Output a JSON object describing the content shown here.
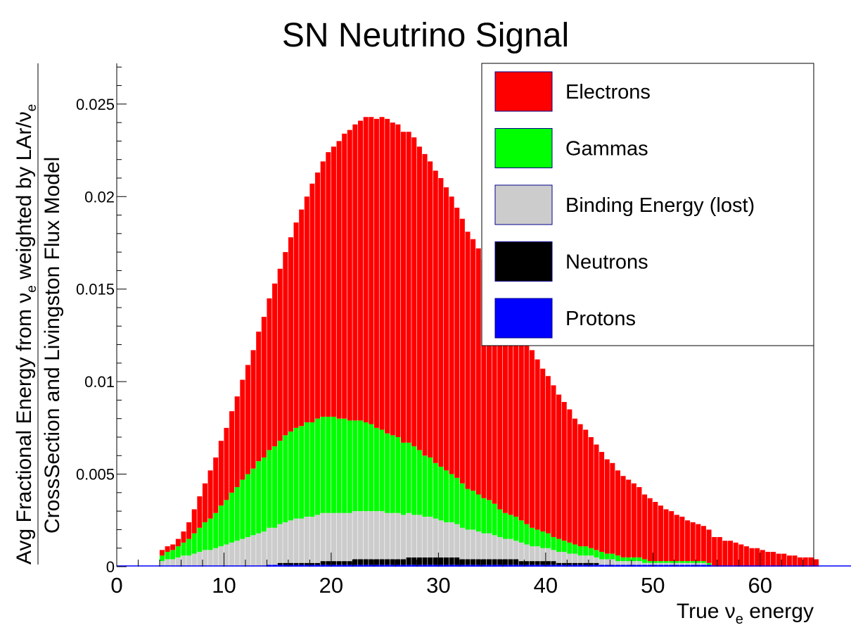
{
  "chart_data": {
    "type": "bar",
    "stacked": true,
    "title": "SN Neutrino Signal",
    "xlabel": "True ν_e energy",
    "xlabel_parts": {
      "pre": "True ν",
      "sub": "e",
      "post": " energy"
    },
    "ylabel_line1_parts": {
      "pre": "Avg Fractional Energy from ν",
      "sub1": "e",
      "mid": " weighted by LAr/ν",
      "sub2": "e"
    },
    "ylabel_line2": "CrossSection and Livingston Flux Model",
    "xlim": [
      0,
      65
    ],
    "ylim": [
      0,
      0.0272
    ],
    "x_ticks": [
      0,
      10,
      20,
      30,
      40,
      50,
      60
    ],
    "x_tick_labels": [
      "0",
      "10",
      "20",
      "30",
      "40",
      "50",
      "60"
    ],
    "y_ticks": [
      0,
      0.005,
      0.01,
      0.015,
      0.02,
      0.025
    ],
    "y_tick_labels": [
      "0",
      "0.005",
      "0.01",
      "0.015",
      "0.02",
      "0.025"
    ],
    "legend_position": "top-right",
    "bin_width": 0.5,
    "x_start": 4,
    "series": [
      {
        "name": "Electrons",
        "color": "#ff0000",
        "values": [
          0.0003,
          0.0003,
          0.0003,
          0.0004,
          0.0006,
          0.0009,
          0.0013,
          0.0017,
          0.0021,
          0.0026,
          0.003,
          0.0035,
          0.0039,
          0.0044,
          0.0049,
          0.0054,
          0.0059,
          0.0064,
          0.007,
          0.0076,
          0.0082,
          0.0088,
          0.0093,
          0.0099,
          0.0105,
          0.0111,
          0.0117,
          0.0122,
          0.0129,
          0.0133,
          0.0138,
          0.0143,
          0.0146,
          0.015,
          0.0154,
          0.0157,
          0.016,
          0.0162,
          0.0165,
          0.0166,
          0.0167,
          0.0169,
          0.017,
          0.0169,
          0.0169,
          0.0168,
          0.0168,
          0.0167,
          0.0164,
          0.0163,
          0.016,
          0.0158,
          0.0156,
          0.0153,
          0.015,
          0.0146,
          0.0143,
          0.0139,
          0.0136,
          0.0133,
          0.0129,
          0.0126,
          0.0122,
          0.0118,
          0.0114,
          0.0111,
          0.0107,
          0.0103,
          0.0099,
          0.0096,
          0.0092,
          0.0088,
          0.0085,
          0.0082,
          0.0078,
          0.0075,
          0.0072,
          0.0068,
          0.0066,
          0.0063,
          0.006,
          0.0057,
          0.0054,
          0.0051,
          0.0049,
          0.0046,
          0.0044,
          0.0042,
          0.004,
          0.0038,
          0.0035,
          0.0034,
          0.0032,
          0.003,
          0.0028,
          0.0027,
          0.0025,
          0.0024,
          0.0022,
          0.0021,
          0.002,
          0.0019,
          0.0018,
          0.0016,
          0.0016,
          0.0014,
          0.0014,
          0.0013,
          0.0012,
          0.0011,
          0.001,
          0.001,
          0.0009,
          0.0008,
          0.0008,
          0.0007,
          0.0007,
          0.0006,
          0.0006,
          0.0005,
          0.0005,
          0.0005,
          0.0004
        ]
      },
      {
        "name": "Gammas",
        "color": "#00ff00",
        "values": [
          0.0003,
          0.0004,
          0.0005,
          0.0006,
          0.0007,
          0.0009,
          0.0011,
          0.0013,
          0.0015,
          0.0017,
          0.0019,
          0.0022,
          0.0024,
          0.0027,
          0.0029,
          0.0032,
          0.0034,
          0.0036,
          0.0039,
          0.004,
          0.0042,
          0.0044,
          0.0045,
          0.0047,
          0.0048,
          0.0049,
          0.005,
          0.0051,
          0.0051,
          0.0052,
          0.0052,
          0.0052,
          0.0052,
          0.0051,
          0.0051,
          0.005,
          0.0049,
          0.0049,
          0.0048,
          0.0047,
          0.0045,
          0.0044,
          0.0043,
          0.0042,
          0.0041,
          0.0039,
          0.0038,
          0.0037,
          0.0035,
          0.0033,
          0.0032,
          0.003,
          0.0029,
          0.0028,
          0.0026,
          0.0025,
          0.0024,
          0.0022,
          0.0021,
          0.002,
          0.0019,
          0.0018,
          0.0017,
          0.0015,
          0.0014,
          0.0013,
          0.0013,
          0.0012,
          0.0011,
          0.001,
          0.0009,
          0.0009,
          0.0008,
          0.0007,
          0.0007,
          0.0006,
          0.0006,
          0.0005,
          0.0005,
          0.0005,
          0.0004,
          0.0004,
          0.0004,
          0.0003,
          0.0003,
          0.0003,
          0.0002,
          0.0002,
          0.0002,
          0.0002,
          0.0002,
          0.0001,
          0.0001,
          0.0001,
          0.0001,
          0.0001,
          0.0001,
          0.0001,
          0.0001,
          0.0001,
          0.0001,
          0.0001,
          0.0001,
          0.0,
          0.0,
          0.0,
          0.0,
          0.0,
          0.0,
          0.0,
          0.0,
          0.0,
          0.0,
          0.0,
          0.0,
          0.0,
          0.0,
          0.0,
          0.0,
          0.0,
          0.0,
          0.0,
          0.0
        ]
      },
      {
        "name": "Binding Energy (lost)",
        "color": "#cccccc",
        "values": [
          0.0003,
          0.0004,
          0.0004,
          0.0005,
          0.0006,
          0.0006,
          0.0007,
          0.0008,
          0.0009,
          0.0009,
          0.001,
          0.0011,
          0.0012,
          0.0013,
          0.0014,
          0.0015,
          0.0016,
          0.0017,
          0.0018,
          0.0019,
          0.002,
          0.002,
          0.0021,
          0.0022,
          0.0023,
          0.0024,
          0.0024,
          0.0025,
          0.0025,
          0.0026,
          0.0026,
          0.0026,
          0.0026,
          0.0026,
          0.0026,
          0.0026,
          0.0026,
          0.0026,
          0.0026,
          0.0026,
          0.0026,
          0.0026,
          0.0025,
          0.0025,
          0.0025,
          0.0024,
          0.0024,
          0.0023,
          0.0023,
          0.0022,
          0.0022,
          0.0021,
          0.002,
          0.0019,
          0.0019,
          0.0018,
          0.0017,
          0.0016,
          0.0016,
          0.0015,
          0.0014,
          0.0014,
          0.0013,
          0.0012,
          0.0011,
          0.0011,
          0.001,
          0.001,
          0.0009,
          0.0008,
          0.0008,
          0.0007,
          0.0007,
          0.0006,
          0.0006,
          0.0006,
          0.0005,
          0.0005,
          0.0004,
          0.0004,
          0.0004,
          0.0003,
          0.0003,
          0.0003,
          0.0003,
          0.0002,
          0.0002,
          0.0002,
          0.0002,
          0.0002,
          0.0001,
          0.0001,
          0.0001,
          0.0001,
          0.0001,
          0.0001,
          0.0001,
          0.0001,
          0.0001,
          0.0001,
          0.0001,
          0.0001,
          0.0,
          0.0,
          0.0,
          0.0,
          0.0,
          0.0,
          0.0,
          0.0,
          0.0,
          0.0,
          0.0,
          0.0,
          0.0,
          0.0,
          0.0,
          0.0,
          0.0,
          0.0,
          0.0,
          0.0
        ]
      },
      {
        "name": "Neutrons",
        "color": "#000000",
        "values": [
          0.0,
          0.0,
          0.0,
          0.0,
          0.0,
          0.0,
          0.0,
          0.0,
          0.0,
          0.0,
          0.0,
          0.0,
          0.0,
          0.0,
          0.0,
          0.0,
          0.0,
          0.0,
          0.0,
          0.0,
          0.0,
          0.0,
          0.0001,
          0.0001,
          0.0001,
          0.0001,
          0.0001,
          0.0001,
          0.0001,
          0.0001,
          0.0002,
          0.0002,
          0.0002,
          0.0002,
          0.0002,
          0.0002,
          0.0003,
          0.0003,
          0.0003,
          0.0003,
          0.0003,
          0.0003,
          0.0003,
          0.0003,
          0.0003,
          0.0003,
          0.0004,
          0.0004,
          0.0004,
          0.0004,
          0.0004,
          0.0004,
          0.0004,
          0.0004,
          0.0004,
          0.0004,
          0.0003,
          0.0003,
          0.0003,
          0.0003,
          0.0003,
          0.0003,
          0.0003,
          0.0003,
          0.0003,
          0.0003,
          0.0003,
          0.0002,
          0.0002,
          0.0002,
          0.0002,
          0.0002,
          0.0002,
          0.0002,
          0.0001,
          0.0001,
          0.0001,
          0.0001,
          0.0001,
          0.0001,
          0.0001,
          0.0001,
          0.0,
          0.0,
          0.0,
          0.0,
          0.0,
          0.0,
          0.0,
          0.0,
          0.0,
          0.0,
          0.0,
          0.0,
          0.0,
          0.0,
          0.0,
          0.0,
          0.0,
          0.0,
          0.0,
          0.0,
          0.0,
          0.0,
          0.0,
          0.0,
          0.0,
          0.0,
          0.0,
          0.0,
          0.0,
          0.0,
          0.0,
          0.0,
          0.0,
          0.0,
          0.0,
          0.0,
          0.0,
          0.0,
          0.0,
          0.0,
          0.0
        ]
      },
      {
        "name": "Protons",
        "color": "#0000ff",
        "values": [
          0.0,
          0.0,
          0.0,
          0.0,
          0.0,
          0.0,
          0.0,
          0.0,
          0.0,
          0.0,
          0.0,
          0.0,
          0.0,
          0.0,
          0.0,
          0.0,
          0.0,
          0.0,
          0.0,
          0.0,
          0.0001,
          0.0001,
          0.0001,
          0.0001,
          0.0001,
          0.0001,
          0.0001,
          0.0001,
          0.0001,
          0.0001,
          0.0001,
          0.0001,
          0.0001,
          0.0001,
          0.0001,
          0.0001,
          0.0001,
          0.0001,
          0.0001,
          0.0001,
          0.0001,
          0.0001,
          0.0001,
          0.0001,
          0.0001,
          0.0001,
          0.0001,
          0.0001,
          0.0001,
          0.0001,
          0.0001,
          0.0001,
          0.0001,
          0.0001,
          0.0001,
          0.0001,
          0.0001,
          0.0001,
          0.0001,
          0.0001,
          0.0001,
          0.0001,
          0.0001,
          0.0001,
          0.0001,
          0.0001,
          0.0001,
          0.0001,
          0.0001,
          0.0001,
          0.0001,
          0.0001,
          0.0001,
          0.0001,
          0.0001,
          0.0001,
          0.0001,
          0.0001,
          0.0001,
          0.0001,
          0.0001,
          0.0001,
          0.0001,
          0.0001,
          0.0001,
          0.0001,
          0.0001,
          0.0001,
          0.0001,
          0.0001,
          0.0001,
          0.0001,
          0.0001,
          0.0001,
          0.0001,
          0.0001,
          0.0001,
          0.0001,
          0.0001,
          0.0001,
          0.0001,
          0.0001,
          0.0001,
          0.0,
          0.0,
          0.0,
          0.0,
          0.0,
          0.0,
          0.0,
          0.0,
          0.0,
          0.0,
          0.0,
          0.0,
          0.0,
          0.0,
          0.0,
          0.0,
          0.0,
          0.0,
          0.0,
          0.0
        ]
      }
    ]
  }
}
